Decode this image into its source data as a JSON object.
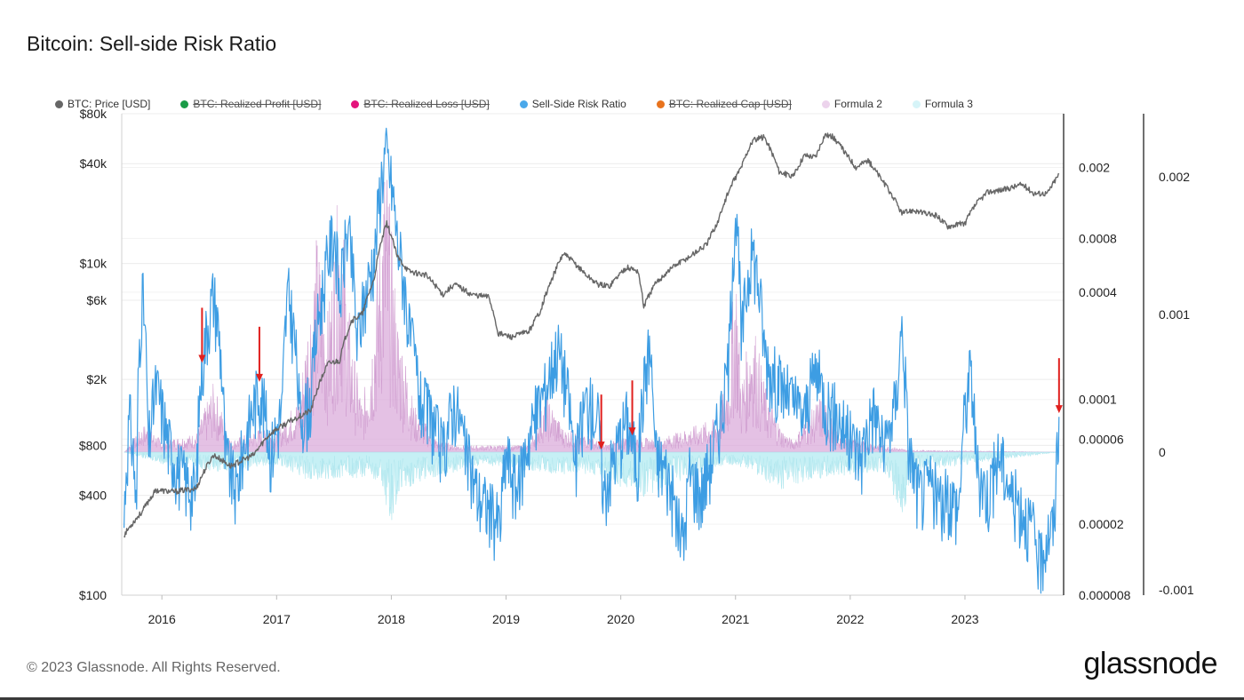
{
  "title": "Bitcoin: Sell-side Risk Ratio",
  "legend": [
    {
      "label": "BTC: Price [USD]",
      "color": "#666666",
      "hidden": false
    },
    {
      "label": "BTC: Realized Profit [USD]",
      "color": "#1a9b47",
      "hidden": true
    },
    {
      "label": "BTC: Realized Loss [USD]",
      "color": "#e4147c",
      "hidden": true
    },
    {
      "label": "Sell-Side Risk Ratio",
      "color": "#4aa8ea",
      "hidden": false
    },
    {
      "label": "BTC: Realized Cap [USD]",
      "color": "#e8731d",
      "hidden": true
    },
    {
      "label": "Formula 2",
      "color": "#ecd3ec",
      "hidden": false
    },
    {
      "label": "Formula 3",
      "color": "#d6f4f8",
      "hidden": false
    }
  ],
  "footer": "© 2023 Glassnode. All Rights Reserved.",
  "brand": "glassnode",
  "chart_data": {
    "type": "line",
    "title": "Bitcoin: Sell-side Risk Ratio",
    "x_range": [
      2015.65,
      2023.86
    ],
    "x_ticks": [
      2016,
      2017,
      2018,
      2019,
      2020,
      2021,
      2022,
      2023
    ],
    "x_tick_labels": [
      "2016",
      "2017",
      "2018",
      "2019",
      "2020",
      "2021",
      "2022",
      "2023"
    ],
    "left_axis": {
      "scale": "log",
      "range": [
        100,
        80000
      ],
      "ticks": [
        100,
        400,
        800,
        2000,
        6000,
        10000,
        40000,
        80000
      ],
      "tick_labels": [
        "$100",
        "$400",
        "$800",
        "$2k",
        "$6k",
        "$10k",
        "$40k",
        "$80k"
      ]
    },
    "right_axis_1": {
      "scale": "log",
      "range": [
        8e-06,
        0.004
      ],
      "ticks": [
        8e-06,
        2e-05,
        6e-05,
        0.0001,
        0.0004,
        0.0008,
        0.002
      ],
      "tick_labels": [
        "0.000008",
        "0.00002",
        "0.00006",
        "0.0001",
        "0.0004",
        "0.0008",
        "0.002"
      ]
    },
    "right_axis_2": {
      "scale": "linear",
      "range": [
        -0.001,
        0.0025
      ],
      "ticks": [
        -0.001,
        0,
        0.001,
        0.002
      ],
      "tick_labels": [
        "-0.001",
        "0",
        "0.001",
        "0.002"
      ]
    },
    "series": [
      {
        "name": "BTC: Price [USD]",
        "axis": "left",
        "color": "#666666",
        "points": [
          [
            2015.67,
            230
          ],
          [
            2015.83,
            320
          ],
          [
            2015.95,
            430
          ],
          [
            2016.1,
            420
          ],
          [
            2016.3,
            440
          ],
          [
            2016.45,
            700
          ],
          [
            2016.6,
            600
          ],
          [
            2016.8,
            700
          ],
          [
            2016.95,
            950
          ],
          [
            2017.15,
            1150
          ],
          [
            2017.3,
            1300
          ],
          [
            2017.45,
            2500
          ],
          [
            2017.55,
            2600
          ],
          [
            2017.65,
            4500
          ],
          [
            2017.75,
            5000
          ],
          [
            2017.85,
            8000
          ],
          [
            2017.96,
            17500
          ],
          [
            2018.05,
            11000
          ],
          [
            2018.15,
            9000
          ],
          [
            2018.3,
            8500
          ],
          [
            2018.45,
            6500
          ],
          [
            2018.55,
            7500
          ],
          [
            2018.7,
            6500
          ],
          [
            2018.85,
            6300
          ],
          [
            2018.93,
            3800
          ],
          [
            2019.05,
            3600
          ],
          [
            2019.2,
            3900
          ],
          [
            2019.3,
            5200
          ],
          [
            2019.4,
            8000
          ],
          [
            2019.5,
            11500
          ],
          [
            2019.6,
            10000
          ],
          [
            2019.7,
            8500
          ],
          [
            2019.8,
            7500
          ],
          [
            2019.9,
            7300
          ],
          [
            2020.05,
            9500
          ],
          [
            2020.15,
            9000
          ],
          [
            2020.2,
            5500
          ],
          [
            2020.3,
            7500
          ],
          [
            2020.45,
            9500
          ],
          [
            2020.6,
            11000
          ],
          [
            2020.75,
            13000
          ],
          [
            2020.85,
            18000
          ],
          [
            2020.95,
            28000
          ],
          [
            2021.05,
            38000
          ],
          [
            2021.15,
            55000
          ],
          [
            2021.25,
            58000
          ],
          [
            2021.38,
            36000
          ],
          [
            2021.5,
            33000
          ],
          [
            2021.6,
            45000
          ],
          [
            2021.7,
            44000
          ],
          [
            2021.78,
            60000
          ],
          [
            2021.85,
            58000
          ],
          [
            2021.95,
            47000
          ],
          [
            2022.05,
            38000
          ],
          [
            2022.15,
            42000
          ],
          [
            2022.3,
            30000
          ],
          [
            2022.45,
            20000
          ],
          [
            2022.55,
            21000
          ],
          [
            2022.65,
            20000
          ],
          [
            2022.75,
            19500
          ],
          [
            2022.85,
            16800
          ],
          [
            2023.0,
            17500
          ],
          [
            2023.1,
            23000
          ],
          [
            2023.2,
            27000
          ],
          [
            2023.35,
            28000
          ],
          [
            2023.5,
            30000
          ],
          [
            2023.6,
            26500
          ],
          [
            2023.72,
            26500
          ],
          [
            2023.82,
            34500
          ]
        ]
      },
      {
        "name": "Sell-Side Risk Ratio",
        "axis": "right_1",
        "color": "#3d9de3",
        "points": [
          [
            2015.67,
            2e-05
          ],
          [
            2015.72,
            8e-05
          ],
          [
            2015.78,
            2e-05
          ],
          [
            2015.83,
            0.0004
          ],
          [
            2015.88,
            5e-05
          ],
          [
            2015.95,
            0.00012
          ],
          [
            2016.05,
            6e-05
          ],
          [
            2016.15,
            4e-05
          ],
          [
            2016.3,
            3e-05
          ],
          [
            2016.45,
            0.0004
          ],
          [
            2016.55,
            5e-05
          ],
          [
            2016.65,
            3e-05
          ],
          [
            2016.75,
            7e-05
          ],
          [
            2016.85,
            0.00012
          ],
          [
            2016.95,
            5e-05
          ],
          [
            2017.05,
            9e-05
          ],
          [
            2017.1,
            0.0004
          ],
          [
            2017.2,
            8e-05
          ],
          [
            2017.3,
            0.0001
          ],
          [
            2017.4,
            0.0004
          ],
          [
            2017.5,
            0.0009
          ],
          [
            2017.55,
            0.00035
          ],
          [
            2017.62,
            0.0009
          ],
          [
            2017.7,
            0.0002
          ],
          [
            2017.78,
            0.0004
          ],
          [
            2017.86,
            0.0007
          ],
          [
            2017.95,
            0.0025
          ],
          [
            2018.05,
            0.0008
          ],
          [
            2018.15,
            0.00025
          ],
          [
            2018.25,
            0.0001
          ],
          [
            2018.35,
            8e-05
          ],
          [
            2018.45,
            5e-05
          ],
          [
            2018.55,
            0.0001
          ],
          [
            2018.65,
            5e-05
          ],
          [
            2018.75,
            3e-05
          ],
          [
            2018.85,
            2.5e-05
          ],
          [
            2018.95,
            2e-05
          ],
          [
            2019.0,
            5e-05
          ],
          [
            2019.1,
            3e-05
          ],
          [
            2019.25,
            8e-05
          ],
          [
            2019.35,
            0.00012
          ],
          [
            2019.45,
            0.0002
          ],
          [
            2019.5,
            0.00015
          ],
          [
            2019.6,
            4e-05
          ],
          [
            2019.7,
            0.0001
          ],
          [
            2019.8,
            8e-05
          ],
          [
            2019.85,
            3e-05
          ],
          [
            2019.95,
            5e-05
          ],
          [
            2020.05,
            8e-05
          ],
          [
            2020.15,
            4e-05
          ],
          [
            2020.25,
            0.0002
          ],
          [
            2020.3,
            5e-05
          ],
          [
            2020.4,
            4e-05
          ],
          [
            2020.5,
            2e-05
          ],
          [
            2020.55,
            1.6e-05
          ],
          [
            2020.6,
            4e-05
          ],
          [
            2020.7,
            3e-05
          ],
          [
            2020.8,
            5e-05
          ],
          [
            2020.9,
            0.0001
          ],
          [
            2020.95,
            0.0002
          ],
          [
            2021.0,
            0.0011
          ],
          [
            2021.05,
            0.0002
          ],
          [
            2021.15,
            0.0007
          ],
          [
            2021.25,
            0.0002
          ],
          [
            2021.3,
            0.00015
          ],
          [
            2021.4,
            0.00012
          ],
          [
            2021.5,
            0.0001
          ],
          [
            2021.6,
            8e-05
          ],
          [
            2021.7,
            0.00015
          ],
          [
            2021.78,
            0.0001
          ],
          [
            2021.9,
            8e-05
          ],
          [
            2022.0,
            6e-05
          ],
          [
            2022.1,
            5e-05
          ],
          [
            2022.2,
            9e-05
          ],
          [
            2022.3,
            5e-05
          ],
          [
            2022.4,
            0.0001
          ],
          [
            2022.45,
            0.00025
          ],
          [
            2022.5,
            6e-05
          ],
          [
            2022.55,
            4e-05
          ],
          [
            2022.6,
            3e-05
          ],
          [
            2022.7,
            3.5e-05
          ],
          [
            2022.8,
            2.5e-05
          ],
          [
            2022.85,
            3e-05
          ],
          [
            2022.95,
            2.5e-05
          ],
          [
            2023.05,
            0.00015
          ],
          [
            2023.1,
            4e-05
          ],
          [
            2023.2,
            3e-05
          ],
          [
            2023.3,
            5e-05
          ],
          [
            2023.4,
            3e-05
          ],
          [
            2023.5,
            2.5e-05
          ],
          [
            2023.6,
            1.8e-05
          ],
          [
            2023.65,
            1.2e-05
          ],
          [
            2023.72,
            1.8e-05
          ],
          [
            2023.78,
            2e-05
          ],
          [
            2023.82,
            8e-05
          ]
        ]
      },
      {
        "name": "Formula 2",
        "axis": "right_2",
        "color": "#ecd3ec",
        "points": [
          [
            2015.67,
            0
          ],
          [
            2015.85,
            0.00012
          ],
          [
            2016.0,
            5e-05
          ],
          [
            2016.3,
            8e-05
          ],
          [
            2016.45,
            0.0003
          ],
          [
            2016.6,
            5e-05
          ],
          [
            2016.85,
            0.0001
          ],
          [
            2017.0,
            8e-05
          ],
          [
            2017.2,
            0.00025
          ],
          [
            2017.35,
            0.00095
          ],
          [
            2017.45,
            0.0006
          ],
          [
            2017.55,
            0.0012
          ],
          [
            2017.65,
            0.0005
          ],
          [
            2017.75,
            0.0002
          ],
          [
            2017.85,
            0.0006
          ],
          [
            2017.95,
            0.00135
          ],
          [
            2018.05,
            0.0006
          ],
          [
            2018.2,
            0.0002
          ],
          [
            2018.4,
            5e-05
          ],
          [
            2018.6,
            3e-05
          ],
          [
            2019.2,
            3e-05
          ],
          [
            2019.35,
            0.00025
          ],
          [
            2019.5,
            0.0001
          ],
          [
            2019.7,
            8e-05
          ],
          [
            2019.85,
            3e-05
          ],
          [
            2020.1,
            8e-05
          ],
          [
            2020.3,
            5e-05
          ],
          [
            2020.85,
            0.00015
          ],
          [
            2020.95,
            0.0004
          ],
          [
            2021.0,
            0.0009
          ],
          [
            2021.05,
            0.0003
          ],
          [
            2021.15,
            0.0006
          ],
          [
            2021.25,
            0.0003
          ],
          [
            2021.4,
            0.0001
          ],
          [
            2021.5,
            5e-05
          ],
          [
            2021.75,
            0.00025
          ],
          [
            2021.9,
            8e-05
          ],
          [
            2022.1,
            5e-05
          ],
          [
            2022.3,
            3e-05
          ],
          [
            2022.5,
            1e-05
          ],
          [
            2023.82,
            0
          ]
        ]
      },
      {
        "name": "Formula 3",
        "axis": "right_2",
        "color": "#d6f4f8",
        "points": [
          [
            2015.67,
            0
          ],
          [
            2016.0,
            -5e-05
          ],
          [
            2016.5,
            -8e-05
          ],
          [
            2017.0,
            -5e-05
          ],
          [
            2017.3,
            -0.00012
          ],
          [
            2017.6,
            -0.0001
          ],
          [
            2017.9,
            -0.00012
          ],
          [
            2018.0,
            -0.0003
          ],
          [
            2018.1,
            -0.00015
          ],
          [
            2018.4,
            -0.0001
          ],
          [
            2018.8,
            -5e-05
          ],
          [
            2019.2,
            -8e-05
          ],
          [
            2019.8,
            -0.0001
          ],
          [
            2020.2,
            -0.00018
          ],
          [
            2020.6,
            -0.0001
          ],
          [
            2021.0,
            -5e-05
          ],
          [
            2021.4,
            -0.00015
          ],
          [
            2021.8,
            -0.0001
          ],
          [
            2022.3,
            -8e-05
          ],
          [
            2022.45,
            -0.00028
          ],
          [
            2022.55,
            -8e-05
          ],
          [
            2023.82,
            0
          ]
        ]
      }
    ],
    "annotations": [
      {
        "type": "arrow",
        "x": 2016.35,
        "series": "Sell-Side Risk Ratio",
        "color": "#e0201e"
      },
      {
        "type": "arrow",
        "x": 2016.85,
        "series": "Sell-Side Risk Ratio",
        "color": "#e0201e"
      },
      {
        "type": "arrow",
        "x": 2019.83,
        "series": "Sell-Side Risk Ratio",
        "color": "#e0201e"
      },
      {
        "type": "arrow",
        "x": 2020.1,
        "series": "Sell-Side Risk Ratio",
        "color": "#e0201e"
      },
      {
        "type": "arrow",
        "x": 2023.82,
        "series": "Sell-Side Risk Ratio",
        "color": "#e0201e"
      }
    ]
  }
}
